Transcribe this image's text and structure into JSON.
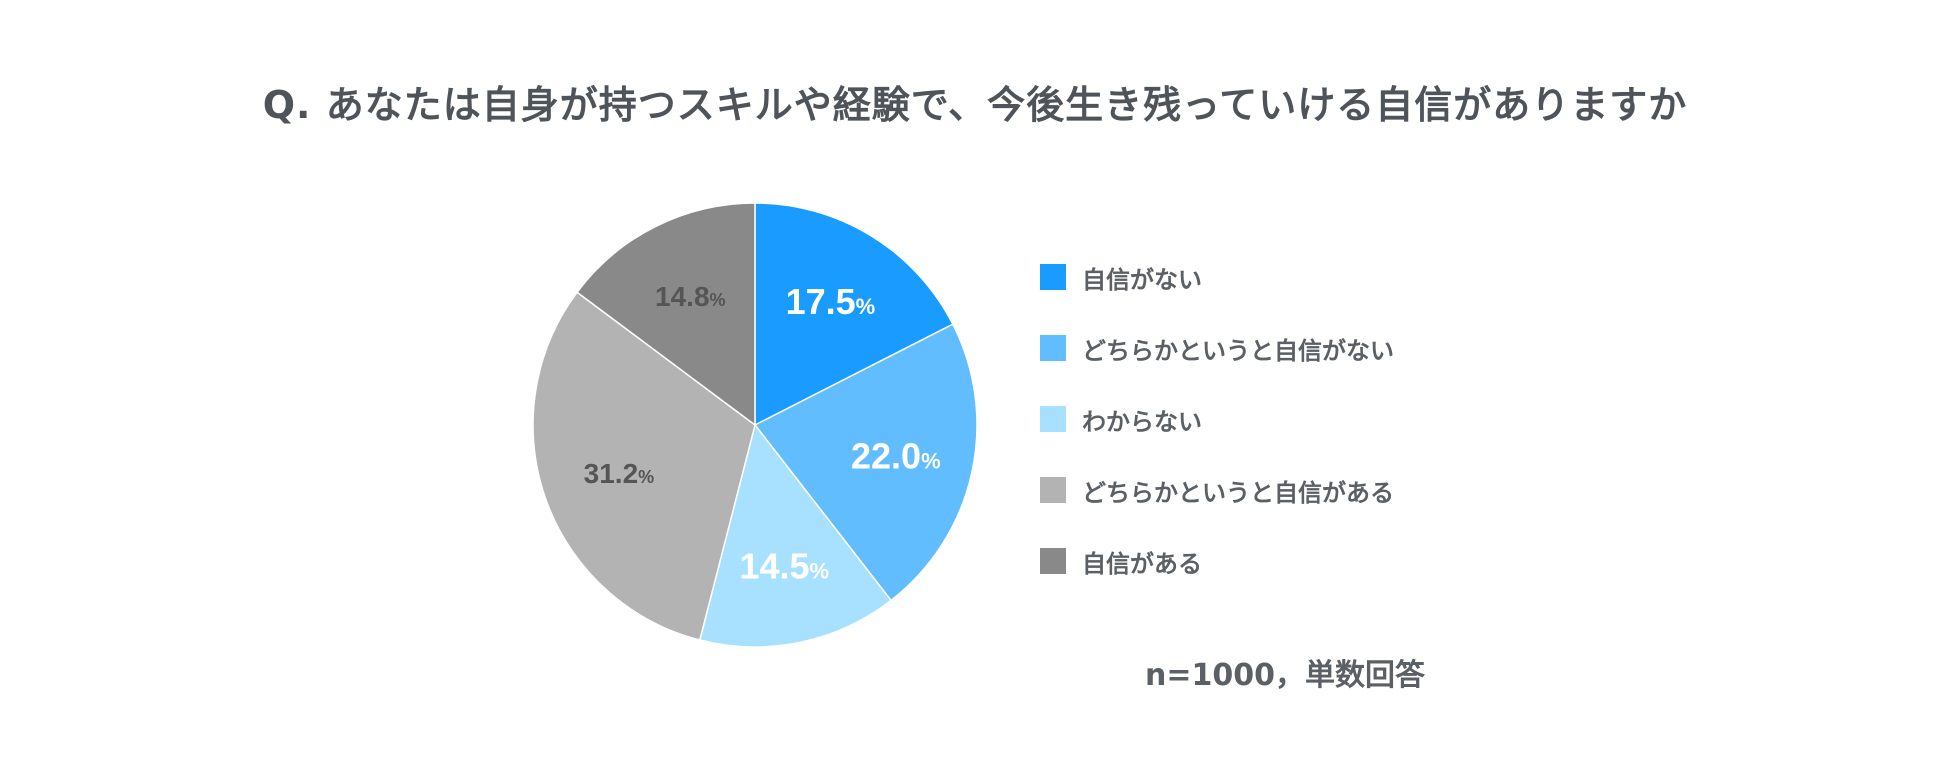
{
  "title": "Q. あなたは自身が持つスキルや経験で、今後生き残っていける自信がありますか",
  "note": "n=1000，単数回答",
  "chart_data": {
    "type": "pie",
    "title": "Q. あなたは自身が持つスキルや経験で、今後生き残っていける自信がありますか",
    "unit": "%",
    "slices": [
      {
        "label": "自信がない",
        "value": 17.5,
        "color": "#1a9bff",
        "label_color": "#ffffff"
      },
      {
        "label": "どちらかというと自信がない",
        "value": 22.0,
        "color": "#62bdff",
        "label_color": "#ffffff"
      },
      {
        "label": "わからない",
        "value": 14.5,
        "color": "#a8e1ff",
        "label_color": "#ffffff"
      },
      {
        "label": "どちらかというと自信がある",
        "value": 31.2,
        "color": "#b3b3b3",
        "label_color": "#555555"
      },
      {
        "label": "自信がある",
        "value": 14.8,
        "color": "#898989",
        "label_color": "#555555"
      }
    ],
    "legend_position": "right"
  }
}
